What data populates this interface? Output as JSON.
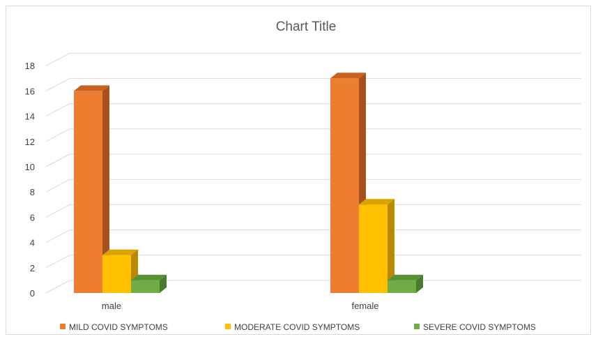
{
  "chart_data": {
    "type": "bar",
    "title": "Chart Title",
    "categories": [
      "male",
      "female"
    ],
    "series": [
      {
        "name": "MILD COVID SYMPTOMS",
        "values": [
          16,
          17
        ],
        "color": "#ED7D31",
        "side": "#A8511C",
        "top": "#C9621F"
      },
      {
        "name": "MODERATE COVID SYMPTOMS",
        "values": [
          3,
          7
        ],
        "color": "#FFC000",
        "side": "#B88A00",
        "top": "#D9A400"
      },
      {
        "name": "SEVERE COVID SYMPTOMS",
        "values": [
          1,
          1
        ],
        "color": "#70AD47",
        "side": "#4A7A2C",
        "top": "#5A9137"
      }
    ],
    "y_ticks": [
      "0",
      "2",
      "4",
      "6",
      "8",
      "10",
      "12",
      "14",
      "16",
      "18"
    ],
    "ylim": [
      0,
      18
    ],
    "grid": true,
    "legend_position": "bottom",
    "style": "3d-column"
  }
}
